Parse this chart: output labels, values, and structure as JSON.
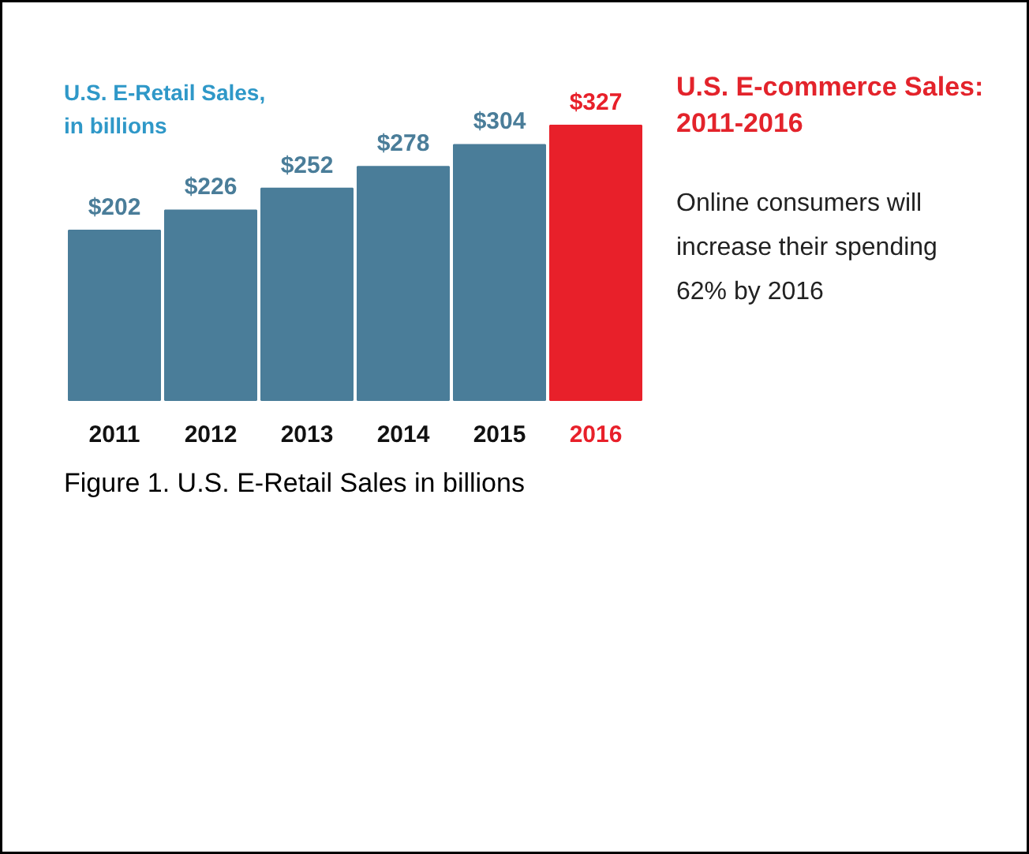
{
  "chart_data": {
    "type": "bar",
    "title": "U.S. E-commerce Sales:\n2011-2016",
    "subtitle": "U.S. E-Retail Sales,\nin billions",
    "categories": [
      "2011",
      "2012",
      "2013",
      "2014",
      "2015",
      "2016"
    ],
    "values": [
      202,
      226,
      252,
      278,
      304,
      327
    ],
    "colors": [
      "#4a7d99",
      "#4a7d99",
      "#4a7d99",
      "#4a7d99",
      "#4a7d99",
      "#e8202a"
    ],
    "value_labels": [
      "$202",
      "$226",
      "$252",
      "$278",
      "$304",
      "$327"
    ],
    "relative": false,
    "annotations": [
      "Online consumers will\nincrease their spending\n62% by 2016",
      "Figure 1. U.S. E-Retail Sales in billions"
    ]
  }
}
